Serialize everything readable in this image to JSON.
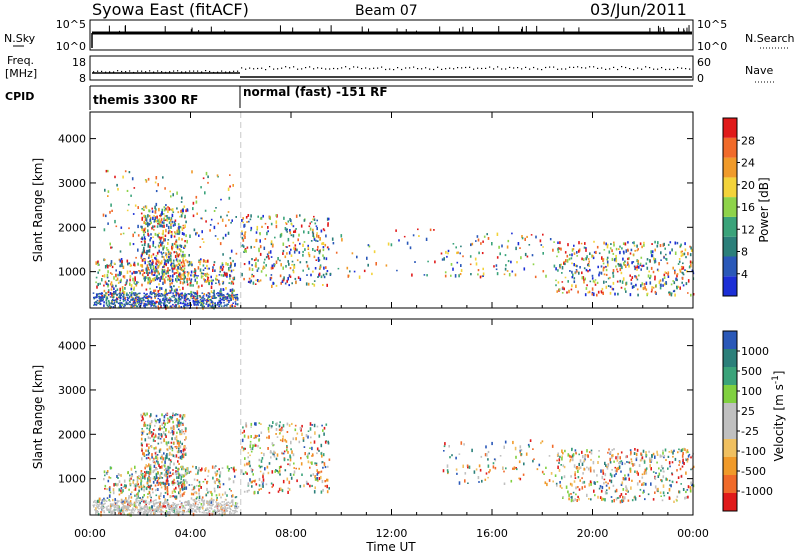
{
  "header": {
    "station": "Syowa East (fitACF)",
    "beam": "Beam 07",
    "date": "03/Jun/2011"
  },
  "top_panels": {
    "nsky_label": "N.Sky",
    "nsky_tick_top": "10^5",
    "nsky_tick_bottom": "10^0",
    "nsearch_label": "N.Search",
    "nsearch_tick_top": "10^5",
    "nsearch_tick_bottom": "10^0",
    "freq_label_line1": "Freq.",
    "freq_label_line2": "[MHz]",
    "freq_tick_top": "18",
    "freq_tick_bottom": "8",
    "nave_label": "Nave",
    "nave_tick_top": "60",
    "nave_tick_bottom": "0",
    "cpid_label": "CPID",
    "cpid_segments": [
      {
        "name": "themis 3300 RF",
        "start_hour": 0,
        "end_hour": 6
      },
      {
        "name": "normal (fast) -151 RF",
        "start_hour": 6,
        "end_hour": 24
      }
    ]
  },
  "colors": {
    "power_scale": [
      "#1c2fd6",
      "#2a58b8",
      "#2b7f7a",
      "#3aa37a",
      "#8ed34a",
      "#f3d33a",
      "#f09a2a",
      "#f06a2a",
      "#e01a1a"
    ],
    "velocity_scale": [
      "#e01a1a",
      "#f06a2a",
      "#f09a2a",
      "#f0c060",
      "#c0c0c0",
      "#c0c0c0",
      "#80d040",
      "#3aa37a",
      "#2b7f7a",
      "#2a58b8"
    ]
  },
  "chart_data": [
    {
      "type": "heatmap",
      "panel": "power",
      "ylabel": "Slant Range [km]",
      "xlabel": "Time UT",
      "x_ticks": [
        "00:00",
        "04:00",
        "08:00",
        "12:00",
        "16:00",
        "20:00",
        "00:00"
      ],
      "x_range_hours": [
        0,
        24
      ],
      "y_ticks": [
        1000,
        2000,
        3000,
        4000
      ],
      "ylim": [
        180,
        4600
      ],
      "colorbar": {
        "label": "Power [dB]",
        "ticks": [
          4,
          8,
          12,
          16,
          20,
          24,
          28
        ],
        "range": [
          0,
          30
        ]
      },
      "echo_regions": [
        {
          "t_start": 0.2,
          "t_end": 5.8,
          "r_min": 200,
          "r_max": 1300,
          "value_min": 2,
          "value_max": 14,
          "density": 0.55
        },
        {
          "t_start": 2.0,
          "t_end": 3.8,
          "r_min": 800,
          "r_max": 2500,
          "value_min": 2,
          "value_max": 16,
          "density": 0.7
        },
        {
          "t_start": 0.5,
          "t_end": 5.8,
          "r_min": 1300,
          "r_max": 3300,
          "value_min": 2,
          "value_max": 10,
          "density": 0.08
        },
        {
          "t_start": 6.0,
          "t_end": 9.5,
          "r_min": 700,
          "r_max": 2300,
          "value_min": 2,
          "value_max": 20,
          "density": 0.3
        },
        {
          "t_start": 9.5,
          "t_end": 14.0,
          "r_min": 900,
          "r_max": 2000,
          "value_min": 2,
          "value_max": 10,
          "density": 0.05
        },
        {
          "t_start": 14.0,
          "t_end": 18.5,
          "r_min": 900,
          "r_max": 1900,
          "value_min": 4,
          "value_max": 14,
          "density": 0.12
        },
        {
          "t_start": 18.5,
          "t_end": 24.0,
          "r_min": 500,
          "r_max": 1700,
          "value_min": 6,
          "value_max": 26,
          "density": 0.35
        }
      ]
    },
    {
      "type": "heatmap",
      "panel": "velocity",
      "ylabel": "Slant Range [km]",
      "xlabel": "Time UT",
      "x_ticks": [
        "00:00",
        "04:00",
        "08:00",
        "12:00",
        "16:00",
        "20:00",
        "00:00"
      ],
      "x_range_hours": [
        0,
        24
      ],
      "y_ticks": [
        1000,
        2000,
        3000,
        4000
      ],
      "ylim": [
        180,
        4600
      ],
      "colorbar": {
        "label": "Velocity [m s^-1]",
        "ticks": [
          -1000,
          -500,
          -100,
          -25,
          25,
          100,
          500,
          1000
        ],
        "tick_labels": [
          "-1000",
          "-500",
          "-100",
          "-25",
          "25",
          "100",
          "500",
          "1000"
        ]
      },
      "echo_regions": [
        {
          "t_start": 0.2,
          "t_end": 5.8,
          "r_min": 200,
          "r_max": 600,
          "value_min": -30,
          "value_max": 30,
          "density": 0.55
        },
        {
          "t_start": 0.5,
          "t_end": 5.8,
          "r_min": 600,
          "r_max": 1300,
          "value_min": -500,
          "value_max": 200,
          "density": 0.45
        },
        {
          "t_start": 2.0,
          "t_end": 3.8,
          "r_min": 800,
          "r_max": 2500,
          "value_min": -1000,
          "value_max": 500,
          "density": 0.7
        },
        {
          "t_start": 6.0,
          "t_end": 9.5,
          "r_min": 700,
          "r_max": 2300,
          "value_min": -600,
          "value_max": 150,
          "density": 0.3
        },
        {
          "t_start": 14.0,
          "t_end": 18.5,
          "r_min": 900,
          "r_max": 1900,
          "value_min": -300,
          "value_max": 300,
          "density": 0.12
        },
        {
          "t_start": 18.5,
          "t_end": 24.0,
          "r_min": 500,
          "r_max": 1700,
          "value_min": -1000,
          "value_max": 300,
          "density": 0.35
        }
      ]
    }
  ]
}
